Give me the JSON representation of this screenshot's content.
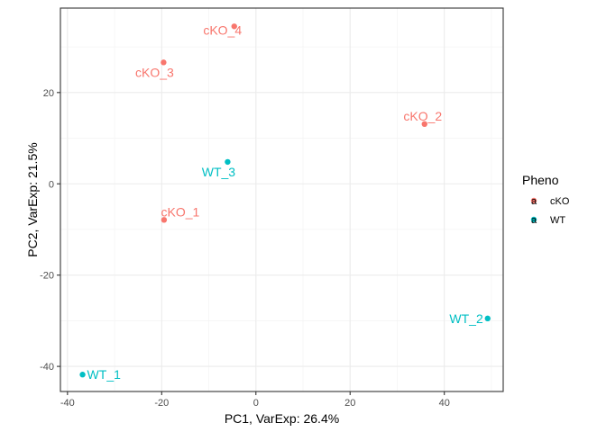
{
  "chart_data": {
    "type": "scatter",
    "xlabel": "PC1, VarExp: 26.4%",
    "ylabel": "PC2, VarExp: 21.5%",
    "xlim": [
      -41.5,
      52.5
    ],
    "ylim": [
      -45.5,
      38.5
    ],
    "xticks": [
      -40,
      -20,
      0,
      20,
      40
    ],
    "yticks": [
      -40,
      -20,
      0,
      20
    ],
    "grid": true,
    "legend": {
      "title": "Pheno",
      "placement": "right",
      "entries": [
        {
          "name": "cKO",
          "color": "#F8766D"
        },
        {
          "name": "WT",
          "color": "#00BFC4"
        }
      ]
    },
    "series": [
      {
        "name": "cKO",
        "color": "#F8766D",
        "points": [
          {
            "label": "cKO_1",
            "x": -19.5,
            "y": -7.9
          },
          {
            "label": "cKO_2",
            "x": 35.8,
            "y": 13.1
          },
          {
            "label": "cKO_3",
            "x": -19.6,
            "y": 26.6
          },
          {
            "label": "cKO_4",
            "x": -4.6,
            "y": 34.5
          }
        ]
      },
      {
        "name": "WT",
        "color": "#00BFC4",
        "points": [
          {
            "label": "WT_1",
            "x": -36.8,
            "y": -41.8
          },
          {
            "label": "WT_2",
            "x": 49.2,
            "y": -29.5
          },
          {
            "label": "WT_3",
            "x": -6.0,
            "y": 4.8
          }
        ]
      }
    ]
  }
}
